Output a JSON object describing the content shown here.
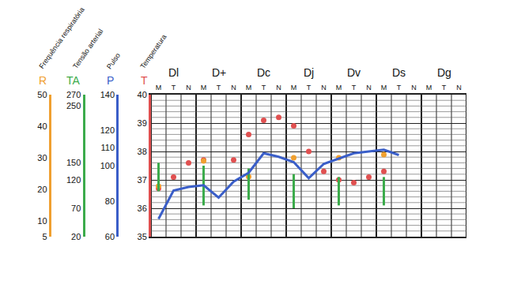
{
  "chart_data": {
    "type": "line",
    "groups": [
      "Dl",
      "D+",
      "Dc",
      "Dj",
      "Dv",
      "Ds",
      "Dg"
    ],
    "categories": [
      "M",
      "T",
      "N",
      "M",
      "T",
      "N",
      "M",
      "T",
      "N",
      "M",
      "T",
      "N",
      "M",
      "T",
      "N",
      "M",
      "T",
      "N",
      "M",
      "T",
      "N"
    ],
    "grid": true,
    "axes": [
      {
        "letter": "R",
        "title": "Frequência respiratória",
        "color": "#f0a030",
        "ylim": [
          5,
          50
        ],
        "yticks": [
          5,
          10,
          20,
          30,
          40,
          50
        ]
      },
      {
        "letter": "TA",
        "title": "Tensão arterial",
        "color": "#3cab4b",
        "ylim": [
          20,
          270
        ],
        "yticks": [
          20,
          70,
          120,
          150,
          250,
          270
        ]
      },
      {
        "letter": "P",
        "title": "Pulso",
        "color": "#3a5ec8",
        "ylim": [
          60,
          140
        ],
        "yticks": [
          60,
          80,
          100,
          110,
          120,
          140
        ]
      },
      {
        "letter": "T",
        "title": "Temperatura",
        "color": "#e05050",
        "ylim": [
          35,
          40
        ],
        "yticks": [
          35,
          36,
          37,
          38,
          39,
          40
        ]
      }
    ],
    "series": [
      {
        "axis": "TA",
        "type": "range",
        "color": "#3cab4b",
        "high": [
          150,
          null,
          null,
          145,
          null,
          null,
          140,
          null,
          null,
          130,
          null,
          null,
          125,
          null,
          null,
          125,
          null,
          null,
          null,
          null,
          null
        ],
        "low": [
          100,
          null,
          null,
          75,
          null,
          null,
          85,
          null,
          null,
          70,
          null,
          null,
          75,
          null,
          null,
          75,
          null,
          null,
          null,
          null,
          null
        ]
      },
      {
        "axis": "P",
        "type": "line",
        "color": "#3a5ec8",
        "values": [
          70,
          86,
          88,
          89,
          82,
          91,
          96,
          107,
          105,
          102,
          93,
          101,
          104,
          107,
          108,
          109,
          106,
          null,
          null,
          null,
          null
        ]
      },
      {
        "axis": "T",
        "type": "scatter",
        "color": "#e05050",
        "values": [
          36.7,
          37.1,
          37.6,
          37.7,
          null,
          37.7,
          38.6,
          39.1,
          39.2,
          38.9,
          38.0,
          37.3,
          37.0,
          36.9,
          37.1,
          37.3,
          null,
          null,
          null,
          null,
          null
        ]
      },
      {
        "axis": "R",
        "type": "scatter",
        "color": "#f0a030",
        "values": [
          21,
          null,
          null,
          29,
          null,
          null,
          24,
          null,
          null,
          30,
          null,
          null,
          30,
          null,
          null,
          31,
          null,
          null,
          null,
          null,
          null
        ]
      }
    ]
  }
}
